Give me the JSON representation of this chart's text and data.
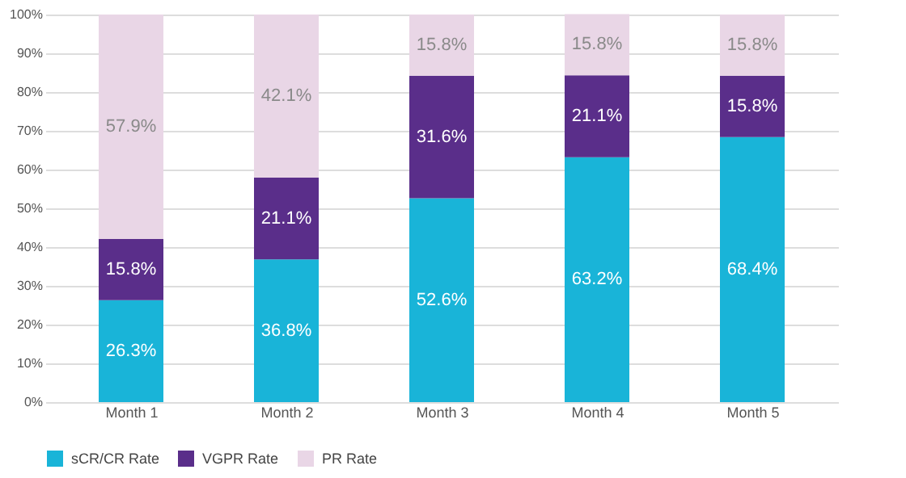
{
  "chart_data": {
    "type": "bar",
    "stacked": true,
    "categories": [
      "Month 1",
      "Month 2",
      "Month 3",
      "Month 4",
      "Month 5"
    ],
    "series": [
      {
        "name": "sCR/CR Rate",
        "color": "#19b4d8",
        "values": [
          26.3,
          36.8,
          52.6,
          63.2,
          68.4
        ],
        "value_labels": [
          "26.3%",
          "36.8%",
          "52.6%",
          "63.2%",
          "68.4%"
        ]
      },
      {
        "name": "VGPR Rate",
        "color": "#5a2e8a",
        "values": [
          15.8,
          21.1,
          31.6,
          21.1,
          15.8
        ],
        "value_labels": [
          "15.8%",
          "21.1%",
          "31.6%",
          "21.1%",
          "15.8%"
        ]
      },
      {
        "name": "PR Rate",
        "color": "#e9d6e6",
        "values": [
          57.9,
          42.1,
          15.8,
          15.8,
          15.8
        ],
        "value_labels": [
          "57.9%",
          "42.1%",
          "15.8%",
          "15.8%",
          "15.8%"
        ]
      }
    ],
    "ylim": [
      0,
      100
    ],
    "yticks": [
      {
        "value": 0,
        "label": "0%"
      },
      {
        "value": 10,
        "label": "10%"
      },
      {
        "value": 20,
        "label": "20%"
      },
      {
        "value": 30,
        "label": "30%"
      },
      {
        "value": 40,
        "label": "40%"
      },
      {
        "value": 50,
        "label": "50%"
      },
      {
        "value": 60,
        "label": "60%"
      },
      {
        "value": 70,
        "label": "70%"
      },
      {
        "value": 80,
        "label": "80%"
      },
      {
        "value": 90,
        "label": "90%"
      },
      {
        "value": 100,
        "label": "100%"
      }
    ],
    "grid": "y",
    "legend": "bottom"
  }
}
